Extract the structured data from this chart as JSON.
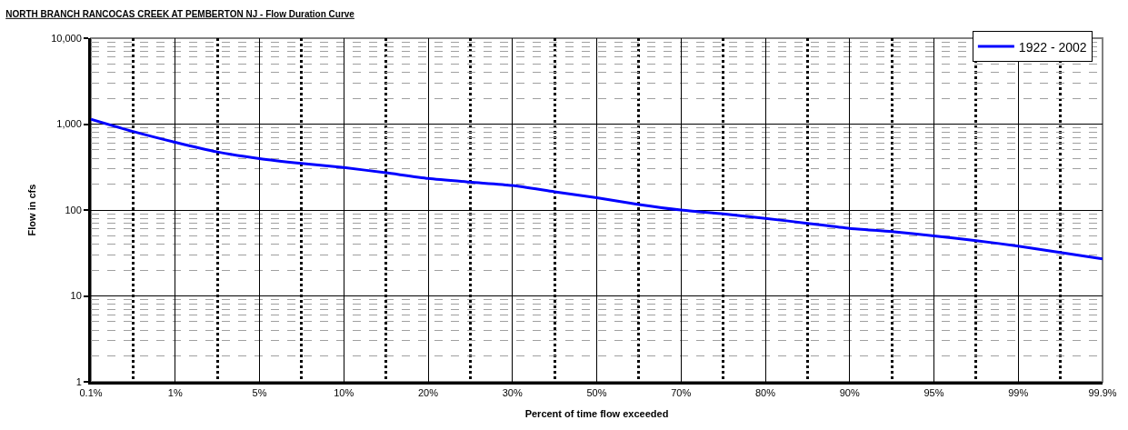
{
  "chart_data": {
    "type": "line",
    "title": "NORTH BRANCH RANCOCAS CREEK AT PEMBERTON NJ - Flow Duration Curve",
    "xlabel": "Percent of time flow exceeded",
    "ylabel": "Flow in cfs",
    "categories": [
      "0.1%",
      null,
      "1%",
      null,
      "5%",
      null,
      "10%",
      null,
      "20%",
      null,
      "30%",
      null,
      "50%",
      null,
      "70%",
      null,
      "80%",
      null,
      "90%",
      null,
      "95%",
      null,
      "99%",
      null,
      "99.9%"
    ],
    "series": [
      {
        "name": "1922 - 2002",
        "color": "#0000ff",
        "values": [
          1140,
          820,
          614,
          474,
          396,
          348,
          312,
          271,
          233,
          211,
          193,
          163,
          139,
          116,
          100,
          90,
          80,
          70,
          61,
          56,
          50,
          44,
          38,
          32,
          27
        ]
      }
    ],
    "ylim": [
      1,
      10000
    ],
    "log": "y",
    "yticks": [
      {
        "value": 1,
        "label": "1"
      },
      {
        "value": 2,
        "label": null
      },
      {
        "value": 3,
        "label": null
      },
      {
        "value": 4,
        "label": null
      },
      {
        "value": 5,
        "label": null
      },
      {
        "value": 6,
        "label": null
      },
      {
        "value": 7,
        "label": null
      },
      {
        "value": 8,
        "label": null
      },
      {
        "value": 9,
        "label": null
      },
      {
        "value": 10,
        "label": "10"
      },
      {
        "value": 20,
        "label": null
      },
      {
        "value": 30,
        "label": null
      },
      {
        "value": 40,
        "label": null
      },
      {
        "value": 50,
        "label": null
      },
      {
        "value": 60,
        "label": null
      },
      {
        "value": 70,
        "label": null
      },
      {
        "value": 80,
        "label": null
      },
      {
        "value": 90,
        "label": null
      },
      {
        "value": 100,
        "label": "100"
      },
      {
        "value": 200,
        "label": null
      },
      {
        "value": 300,
        "label": null
      },
      {
        "value": 400,
        "label": null
      },
      {
        "value": 500,
        "label": null
      },
      {
        "value": 600,
        "label": null
      },
      {
        "value": 700,
        "label": null
      },
      {
        "value": 800,
        "label": null
      },
      {
        "value": 900,
        "label": null
      },
      {
        "value": 1000,
        "label": "1,000"
      },
      {
        "value": 2000,
        "label": null
      },
      {
        "value": 3000,
        "label": null
      },
      {
        "value": 4000,
        "label": null
      },
      {
        "value": 5000,
        "label": null
      },
      {
        "value": 6000,
        "label": null
      },
      {
        "value": 7000,
        "label": null
      },
      {
        "value": 8000,
        "label": null
      },
      {
        "value": 9000,
        "label": null
      },
      {
        "value": 10000,
        "label": "10,000"
      }
    ],
    "grid": true,
    "legend": "top right",
    "marker": "none",
    "line_style": "solid"
  }
}
